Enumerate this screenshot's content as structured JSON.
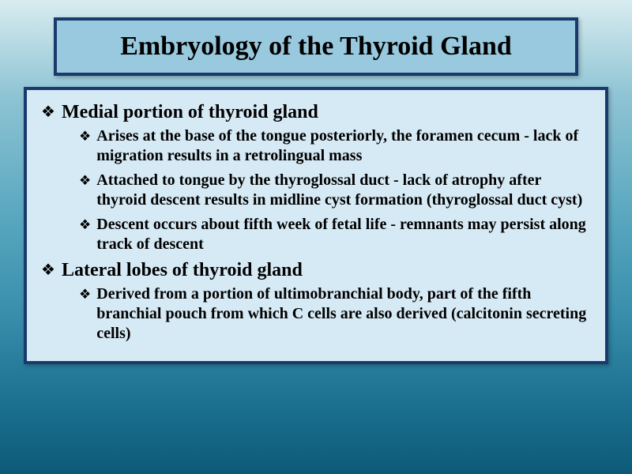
{
  "slide": {
    "title": "Embryology of the Thyroid Gland",
    "colors": {
      "border": "#1a3a6e",
      "title_bg": "#99c9de",
      "content_bg": "#d6eaf5",
      "text": "#000000",
      "bg_gradient_top": "#d8ecf0",
      "bg_gradient_bottom": "#0d5a78"
    },
    "bullet_glyph": "❖",
    "font_family": "Georgia, Times New Roman, serif",
    "title_fontsize": 34,
    "lvl1_fontsize": 24,
    "lvl2_fontsize": 20,
    "items": [
      {
        "text": "Medial portion of thyroid gland",
        "children": [
          {
            "text": "Arises at the base of the tongue posteriorly, the foramen cecum - lack of migration results in a retrolingual mass"
          },
          {
            "text": "Attached to tongue by the thyroglossal duct - lack of atrophy after thyroid descent results in midline cyst formation (thyroglossal duct cyst)"
          },
          {
            "text": "Descent occurs about fifth week of fetal life - remnants may persist along track of descent"
          }
        ]
      },
      {
        "text": "Lateral lobes of thyroid gland",
        "children": [
          {
            "text": "Derived from a portion of ultimobranchial body, part of the fifth branchial pouch from which C cells are also derived (calcitonin secreting cells)"
          }
        ]
      }
    ]
  }
}
